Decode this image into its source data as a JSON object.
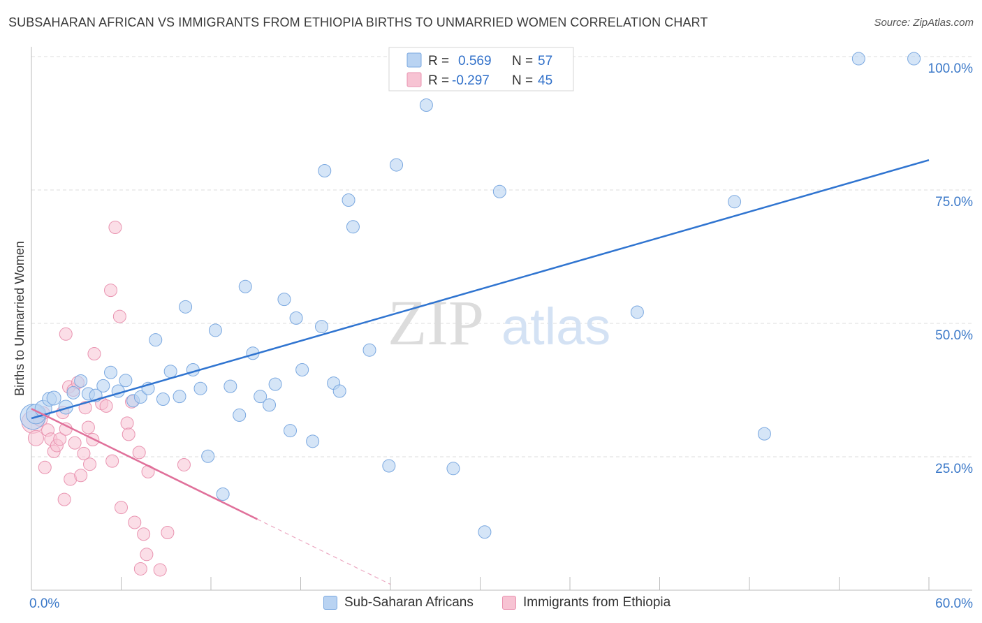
{
  "header": {
    "title": "SUBSAHARAN AFRICAN VS IMMIGRANTS FROM ETHIOPIA BIRTHS TO UNMARRIED WOMEN CORRELATION CHART",
    "source": "Source: ZipAtlas.com"
  },
  "watermark": {
    "zip": "ZIP",
    "atlas": "atlas"
  },
  "colors": {
    "blue_fill": "#b9d3f2",
    "blue_stroke": "#7aa8e0",
    "blue_line": "#2f74d0",
    "pink_fill": "#f7c3d3",
    "pink_stroke": "#e993b0",
    "pink_line": "#e0709a",
    "tick_label": "#3a78c8"
  },
  "legend_top": {
    "rows": [
      {
        "r_label": "R =",
        "r_value": "0.569",
        "n_label": "N =",
        "n_value": "57"
      },
      {
        "r_label": "R =",
        "r_value": "-0.297",
        "n_label": "N =",
        "n_value": "45"
      }
    ]
  },
  "legend_bottom": {
    "items": [
      {
        "label": "Sub-Saharan Africans"
      },
      {
        "label": "Immigrants from Ethiopia"
      }
    ]
  },
  "chart_data": {
    "type": "scatter",
    "title": "SUBSAHARAN AFRICAN VS IMMIGRANTS FROM ETHIOPIA BIRTHS TO UNMARRIED WOMEN CORRELATION CHART",
    "xlabel": "",
    "ylabel": "Births to Unmarried Women",
    "xlim": [
      0,
      60
    ],
    "ylim": [
      0,
      100
    ],
    "x_tick_labels": [
      "0.0%",
      "60.0%"
    ],
    "y_tick_labels": [
      "25.0%",
      "50.0%",
      "75.0%",
      "100.0%"
    ],
    "y_ticks": [
      25,
      50,
      75,
      100
    ],
    "grid": true,
    "legend_placement": "top-center",
    "series": [
      {
        "name": "Sub-Saharan Africans",
        "color": "#b9d3f2",
        "r": 0.569,
        "n": 57,
        "trend": {
          "x": [
            0,
            60
          ],
          "y": [
            32.2,
            80.6
          ],
          "dashed_after": null
        },
        "points": [
          {
            "x": 0.1,
            "y": 32.5,
            "s": 18
          },
          {
            "x": 0.3,
            "y": 33.0,
            "s": 14
          },
          {
            "x": 0.8,
            "y": 34.0,
            "s": 12
          },
          {
            "x": 1.2,
            "y": 35.8,
            "s": 10
          },
          {
            "x": 1.5,
            "y": 36.0,
            "s": 10
          },
          {
            "x": 2.3,
            "y": 34.3,
            "s": 10
          },
          {
            "x": 2.8,
            "y": 37.0,
            "s": 9
          },
          {
            "x": 3.3,
            "y": 39.2,
            "s": 9
          },
          {
            "x": 3.8,
            "y": 36.8,
            "s": 9
          },
          {
            "x": 4.3,
            "y": 36.5,
            "s": 9
          },
          {
            "x": 4.8,
            "y": 38.3,
            "s": 9
          },
          {
            "x": 5.3,
            "y": 40.8,
            "s": 9
          },
          {
            "x": 5.8,
            "y": 37.3,
            "s": 9
          },
          {
            "x": 6.3,
            "y": 39.3,
            "s": 9
          },
          {
            "x": 6.8,
            "y": 35.5,
            "s": 9
          },
          {
            "x": 7.3,
            "y": 36.2,
            "s": 9
          },
          {
            "x": 7.8,
            "y": 37.8,
            "s": 9
          },
          {
            "x": 8.3,
            "y": 46.9,
            "s": 9
          },
          {
            "x": 8.8,
            "y": 35.8,
            "s": 9
          },
          {
            "x": 9.3,
            "y": 41.0,
            "s": 9
          },
          {
            "x": 9.9,
            "y": 36.3,
            "s": 9
          },
          {
            "x": 10.3,
            "y": 53.1,
            "s": 9
          },
          {
            "x": 10.8,
            "y": 41.3,
            "s": 9
          },
          {
            "x": 11.3,
            "y": 37.8,
            "s": 9
          },
          {
            "x": 11.8,
            "y": 25.1,
            "s": 9
          },
          {
            "x": 12.3,
            "y": 48.7,
            "s": 9
          },
          {
            "x": 12.8,
            "y": 18.0,
            "s": 9
          },
          {
            "x": 13.3,
            "y": 38.2,
            "s": 9
          },
          {
            "x": 13.9,
            "y": 32.8,
            "s": 9
          },
          {
            "x": 14.3,
            "y": 56.9,
            "s": 9
          },
          {
            "x": 14.8,
            "y": 44.4,
            "s": 9
          },
          {
            "x": 15.3,
            "y": 36.3,
            "s": 9
          },
          {
            "x": 15.9,
            "y": 34.7,
            "s": 9
          },
          {
            "x": 16.3,
            "y": 38.6,
            "s": 9
          },
          {
            "x": 16.9,
            "y": 54.5,
            "s": 9
          },
          {
            "x": 17.3,
            "y": 29.9,
            "s": 9
          },
          {
            "x": 17.7,
            "y": 51.0,
            "s": 9
          },
          {
            "x": 18.1,
            "y": 41.3,
            "s": 9
          },
          {
            "x": 18.8,
            "y": 27.9,
            "s": 9
          },
          {
            "x": 19.4,
            "y": 49.4,
            "s": 9
          },
          {
            "x": 19.6,
            "y": 78.6,
            "s": 9
          },
          {
            "x": 20.2,
            "y": 38.8,
            "s": 9
          },
          {
            "x": 20.6,
            "y": 37.3,
            "s": 9
          },
          {
            "x": 21.2,
            "y": 73.1,
            "s": 9
          },
          {
            "x": 21.5,
            "y": 68.1,
            "s": 9
          },
          {
            "x": 22.6,
            "y": 45.0,
            "s": 9
          },
          {
            "x": 23.9,
            "y": 23.3,
            "s": 9
          },
          {
            "x": 24.4,
            "y": 79.7,
            "s": 9
          },
          {
            "x": 26.4,
            "y": 90.9,
            "s": 9
          },
          {
            "x": 28.2,
            "y": 22.8,
            "s": 9
          },
          {
            "x": 30.3,
            "y": 10.9,
            "s": 9
          },
          {
            "x": 31.3,
            "y": 74.7,
            "s": 9
          },
          {
            "x": 35.8,
            "y": 99.6,
            "s": 9
          },
          {
            "x": 40.5,
            "y": 52.1,
            "s": 9
          },
          {
            "x": 47.0,
            "y": 72.8,
            "s": 9
          },
          {
            "x": 49.0,
            "y": 29.3,
            "s": 9
          },
          {
            "x": 55.3,
            "y": 99.6,
            "s": 9
          },
          {
            "x": 59.0,
            "y": 99.6,
            "s": 9
          }
        ]
      },
      {
        "name": "Immigrants from Ethiopia",
        "color": "#f7c3d3",
        "r": -0.297,
        "n": 45,
        "trend": {
          "x": [
            0,
            15.1
          ],
          "y": [
            34.0,
            13.3
          ],
          "dashed_to": [
            24.0,
            1.1
          ]
        },
        "points": [
          {
            "x": 0.1,
            "y": 31.5,
            "s": 16
          },
          {
            "x": 0.3,
            "y": 28.5,
            "s": 11
          },
          {
            "x": 0.6,
            "y": 32.0,
            "s": 10
          },
          {
            "x": 0.9,
            "y": 23.0,
            "s": 9
          },
          {
            "x": 1.1,
            "y": 30.0,
            "s": 9
          },
          {
            "x": 1.3,
            "y": 28.3,
            "s": 9
          },
          {
            "x": 1.5,
            "y": 26.0,
            "s": 9
          },
          {
            "x": 1.7,
            "y": 27.1,
            "s": 9
          },
          {
            "x": 1.9,
            "y": 28.3,
            "s": 9
          },
          {
            "x": 2.1,
            "y": 33.3,
            "s": 9
          },
          {
            "x": 2.3,
            "y": 30.2,
            "s": 9
          },
          {
            "x": 2.2,
            "y": 17.0,
            "s": 9
          },
          {
            "x": 2.3,
            "y": 48.0,
            "s": 9
          },
          {
            "x": 2.5,
            "y": 38.1,
            "s": 9
          },
          {
            "x": 2.6,
            "y": 20.8,
            "s": 9
          },
          {
            "x": 2.8,
            "y": 37.5,
            "s": 9
          },
          {
            "x": 2.9,
            "y": 27.6,
            "s": 9
          },
          {
            "x": 3.1,
            "y": 38.9,
            "s": 9
          },
          {
            "x": 3.3,
            "y": 21.5,
            "s": 9
          },
          {
            "x": 3.5,
            "y": 25.6,
            "s": 9
          },
          {
            "x": 3.6,
            "y": 34.2,
            "s": 9
          },
          {
            "x": 3.8,
            "y": 30.5,
            "s": 9
          },
          {
            "x": 3.9,
            "y": 23.6,
            "s": 9
          },
          {
            "x": 4.1,
            "y": 28.2,
            "s": 9
          },
          {
            "x": 4.2,
            "y": 44.3,
            "s": 9
          },
          {
            "x": 4.7,
            "y": 35.0,
            "s": 9
          },
          {
            "x": 5.0,
            "y": 34.5,
            "s": 9
          },
          {
            "x": 5.3,
            "y": 56.2,
            "s": 9
          },
          {
            "x": 5.4,
            "y": 24.2,
            "s": 9
          },
          {
            "x": 5.6,
            "y": 68.0,
            "s": 9
          },
          {
            "x": 5.9,
            "y": 51.3,
            "s": 9
          },
          {
            "x": 6.0,
            "y": 15.5,
            "s": 9
          },
          {
            "x": 6.4,
            "y": 31.3,
            "s": 9
          },
          {
            "x": 6.5,
            "y": 29.2,
            "s": 9
          },
          {
            "x": 6.7,
            "y": 35.3,
            "s": 9
          },
          {
            "x": 6.9,
            "y": 12.7,
            "s": 9
          },
          {
            "x": 7.2,
            "y": 25.8,
            "s": 9
          },
          {
            "x": 7.3,
            "y": 4.0,
            "s": 9
          },
          {
            "x": 7.5,
            "y": 10.5,
            "s": 9
          },
          {
            "x": 7.7,
            "y": 6.7,
            "s": 9
          },
          {
            "x": 7.8,
            "y": 22.2,
            "s": 9
          },
          {
            "x": 8.6,
            "y": 3.8,
            "s": 9
          },
          {
            "x": 9.1,
            "y": 10.8,
            "s": 9
          },
          {
            "x": 10.2,
            "y": 23.5,
            "s": 9
          },
          {
            "x": 0.8,
            "y": 33.2,
            "s": 9
          }
        ]
      }
    ]
  }
}
